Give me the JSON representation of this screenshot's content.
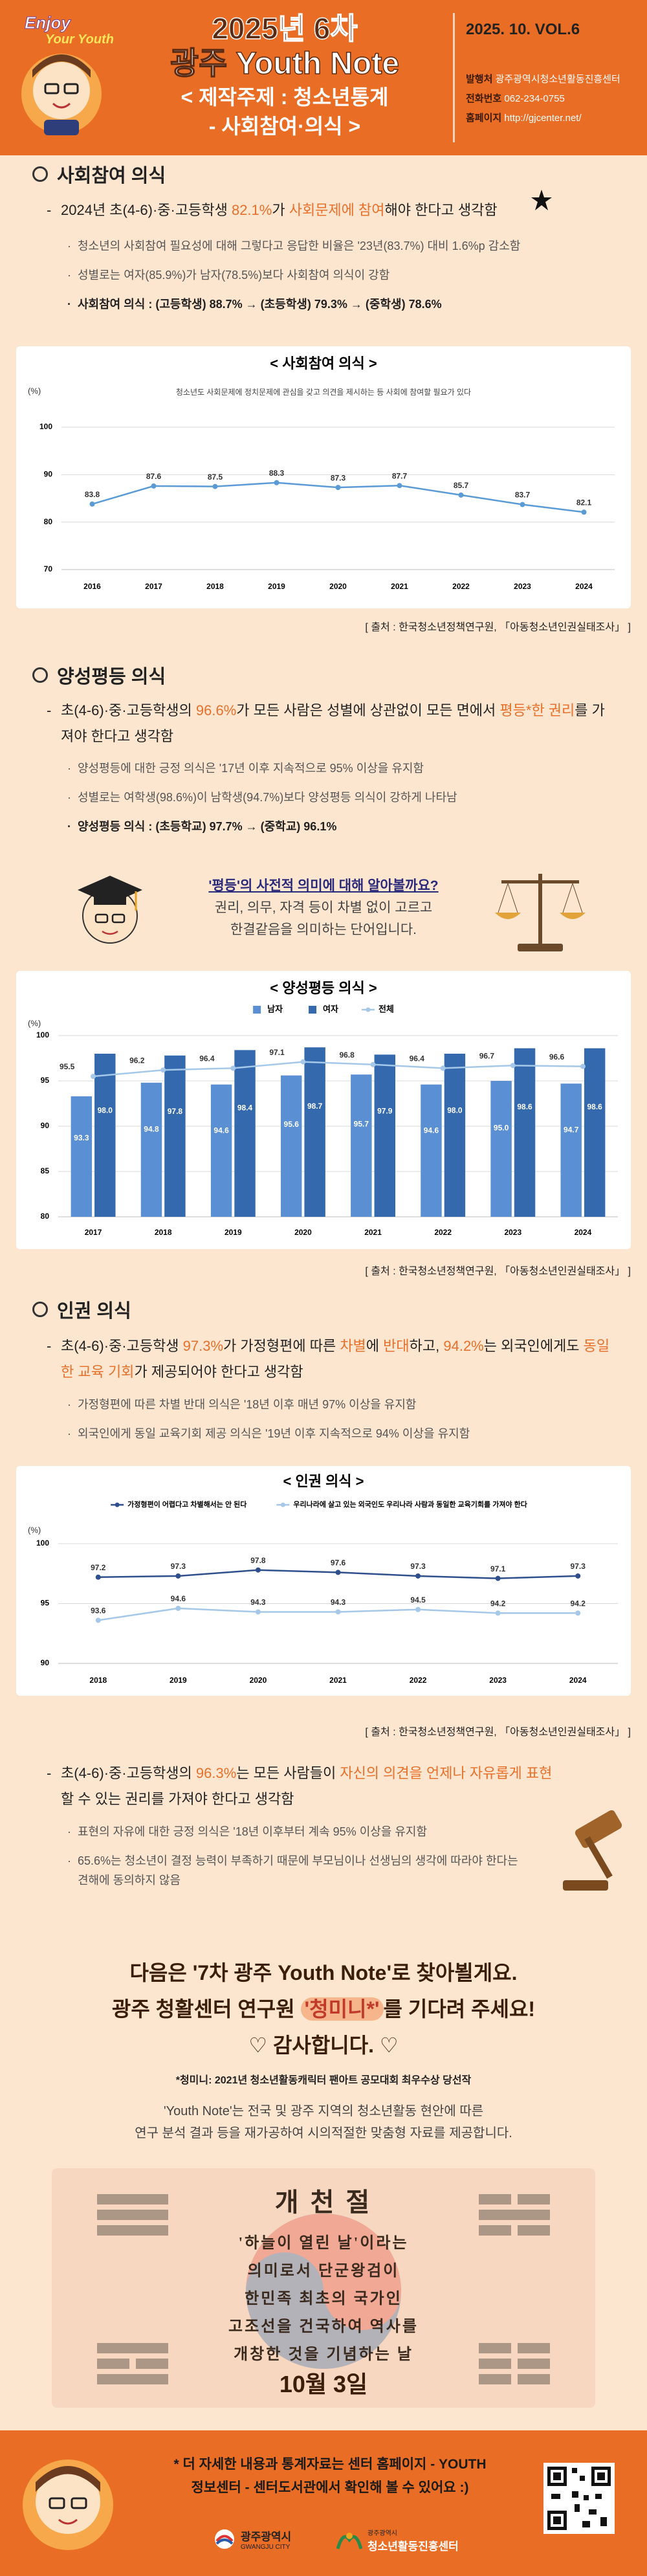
{
  "header": {
    "logo": [
      "Enjoy",
      "Your Youth"
    ],
    "issue": "2025년 6차",
    "title": "광주 Youth Note",
    "topic": [
      "< 제작주제 : 청소년통계",
      "- 사회참여·의식 >"
    ],
    "vol": "2025. 10. VOL.6",
    "info": [
      [
        "발행처",
        "광주광역시청소년활동진흥센터"
      ],
      [
        "전화번호",
        "062-234-0755"
      ],
      [
        "홈페이지",
        "http://gjcenter.net/"
      ]
    ]
  },
  "sections": [
    {
      "heading": "사회참여 의식",
      "main": [
        "2024년 초(4-6)·중·고등학생 ",
        "82.1%",
        "가 ",
        "사회문제에 참여",
        "해야 한다고 생각함"
      ],
      "bullets": [
        "청소년의 사회참여 필요성에 대해 그렇다고 응답한 비율은 '23년(83.7%) 대비 1.6%p 감소함",
        "성별로는 여자(85.9%)가 남자(78.5%)보다 사회참여 의식이 강함",
        "사회참여 의식 : (고등학생) 88.7% → (초등학생) 79.3% → (중학생) 78.6%"
      ],
      "source": "[ 출처 : 한국청소년정책연구원, 「아동청소년인권실태조사」 ]"
    },
    {
      "heading": "양성평등 의식",
      "main": [
        "초(4-6)·중·고등학생의 ",
        "96.6%",
        "가 모든 사람은 성별에 상관없이 모든 면에서 ",
        "평등*한 권리",
        "를 가져야 한다고 생각함"
      ],
      "bullets": [
        "양성평등에 대한 긍정 의식은 '17년 이후 지속적으로 95% 이상을 유지함",
        "성별로는 여학생(98.6%)이 남학생(94.7%)보다 양성평등 의식이 강하게 나타남",
        "양성평등 의식 : (초등학교) 97.7% → (중학교) 96.1%"
      ],
      "info": {
        "question": "'평등'의 사전적 의미에 대해 알아볼까요?",
        "answer": [
          "권리, 의무, 자격 등이 차별 없이 고르고",
          "한결같음을 의미하는 단어입니다."
        ]
      },
      "source": "[ 출처 : 한국청소년정책연구원, 「아동청소년인권실태조사」 ]"
    },
    {
      "heading": "인권 의식",
      "main": [
        "초(4-6)·중·고등학생 ",
        "97.3%",
        "가 가정형편에 따른 ",
        "차별",
        "에 ",
        "반대",
        "하고, ",
        "94.2%",
        "는 외국인에게도 ",
        "동일한 교육 기회",
        "가 제공되어야 한다고 생각함"
      ],
      "bullets": [
        "가정형편에 따른 차별 반대 의식은 '18년 이후 매년 97% 이상을 유지함",
        "외국인에게 동일 교육기회 제공 의식은 '19년 이후 지속적으로 94% 이상을 유지함"
      ],
      "source": "[ 출처 : 한국청소년정책연구원, 「아동청소년인권실태조사」 ]",
      "main2": [
        "초(4-6)·중·고등학생의 ",
        "96.3%",
        "는 모든 사람들이 ",
        "자신의 의견을 언제나 자유롭게 표현",
        "할 수 있는 권리를 가져야 한다고 생각함"
      ],
      "bullets2": [
        "표현의 자유에 대한 긍정 의식은 '18년 이후부터 계속 95% 이상을 유지함",
        "65.6%는 청소년이 결정 능력이 부족하기 때문에 부모님이나 선생님의 생각에 따라야 한다는 견해에 동의하지 않음"
      ]
    }
  ],
  "chart_data": [
    {
      "type": "line",
      "title": "< 사회참여 의식 >",
      "subtitle": "청소년도 사회문제에 정치문제에 관심을 갖고 의견을 제시하는 등 사회에 참여할 필요가 있다",
      "y_label": "(%)",
      "categories": [
        "2016",
        "2017",
        "2018",
        "2019",
        "2020",
        "2021",
        "2022",
        "2023",
        "2024"
      ],
      "series": [
        {
          "name": "사회참여 의식",
          "color": "#5b9bd5",
          "values": [
            83.8,
            87.6,
            87.5,
            88.3,
            87.3,
            87.7,
            85.7,
            83.7,
            82.1
          ]
        }
      ],
      "ylim": [
        70,
        100
      ],
      "yticks": [
        70,
        80,
        90,
        100
      ],
      "grid": true,
      "legend": false
    },
    {
      "type": "bar",
      "title": "< 양성평등 의식 >",
      "y_label": "(%)",
      "categories": [
        "2017",
        "2018",
        "2019",
        "2020",
        "2021",
        "2022",
        "2023",
        "2024"
      ],
      "series": [
        {
          "name": "남자",
          "color": "#5b8fd3",
          "values": [
            93.3,
            94.8,
            94.6,
            95.6,
            95.7,
            94.6,
            95.0,
            94.7
          ],
          "value_labels": [
            "93.3",
            "94.8",
            "94.6",
            "95.6",
            "95.7",
            "94.6",
            "95.0",
            "94.7"
          ]
        },
        {
          "name": "여자",
          "color": "#3569ad",
          "values": [
            98.0,
            97.8,
            98.4,
            98.7,
            97.9,
            98.0,
            98.6,
            98.6
          ],
          "value_labels": [
            "98.0",
            "97.8",
            "98.4",
            "98.7",
            "97.9",
            "98.0",
            "98.6",
            "98.6"
          ]
        },
        {
          "name": "전체",
          "type": "line",
          "color": "#a6c8e8",
          "values": [
            95.5,
            96.2,
            96.4,
            97.1,
            96.8,
            96.4,
            96.7,
            96.6
          ]
        }
      ],
      "ylim": [
        80,
        100
      ],
      "yticks": [
        80,
        85,
        90,
        95,
        100
      ],
      "grid": true,
      "legend": true
    },
    {
      "type": "line",
      "title": "< 인권 의식 >",
      "y_label": "(%)",
      "categories": [
        "2018",
        "2019",
        "2020",
        "2021",
        "2022",
        "2023",
        "2024"
      ],
      "series": [
        {
          "name": "가정형편이 어렵다고 차별해서는 안 된다",
          "color": "#2f4f8c",
          "values": [
            97.2,
            97.3,
            97.8,
            97.6,
            97.3,
            97.1,
            97.3
          ]
        },
        {
          "name": "우리나라에 살고 있는 외국인도 우리나라 사람과 동일한 교육기회를 가져야 한다",
          "color": "#a6c8e8",
          "values": [
            93.6,
            94.6,
            94.3,
            94.3,
            94.5,
            94.2,
            94.2
          ]
        }
      ],
      "ylim": [
        90,
        100
      ],
      "yticks": [
        90,
        95,
        100
      ],
      "grid": true,
      "legend": true
    }
  ],
  "closing": {
    "lines": [
      "다음은 '7차 광주 Youth Note'로 찾아뵐게요.",
      [
        "광주 청활센터 연구원 ",
        "'청미니*'",
        "를 기다려 주세요!"
      ],
      "♡ 감사합니다. ♡"
    ],
    "note": "*청미니: 2021년 청소년활동캐릭터 팬아트 공모대회 최우수상 당선작",
    "about": [
      "'Youth Note'는 전국 및 광주 지역의 청소년활동 현안에 따른",
      "연구 분석 결과 등을 재가공하여 시의적절한 맞춤형 자료를 제공합니다."
    ]
  },
  "holiday": {
    "title": "개 천 절",
    "lines": [
      "'하늘이 열린 날'이라는",
      "의미로서 단군왕검이",
      "한민족 최초의 국가인",
      "고조선을 건국하여 역사를",
      "개창한 것을 기념하는 날"
    ],
    "date": "10월 3일"
  },
  "footer": {
    "text": [
      "* 더 자세한 내용과 통계자료는 센터 홈페이지 - YOUTH",
      "정보센터 - 센터도서관에서 확인해 볼 수 있어요 :)"
    ],
    "logos": [
      {
        "name": "광주광역시",
        "sub": "GWANGJU CITY"
      },
      {
        "name": "청소년활동진흥센터",
        "sub": "광주광역시"
      }
    ]
  }
}
